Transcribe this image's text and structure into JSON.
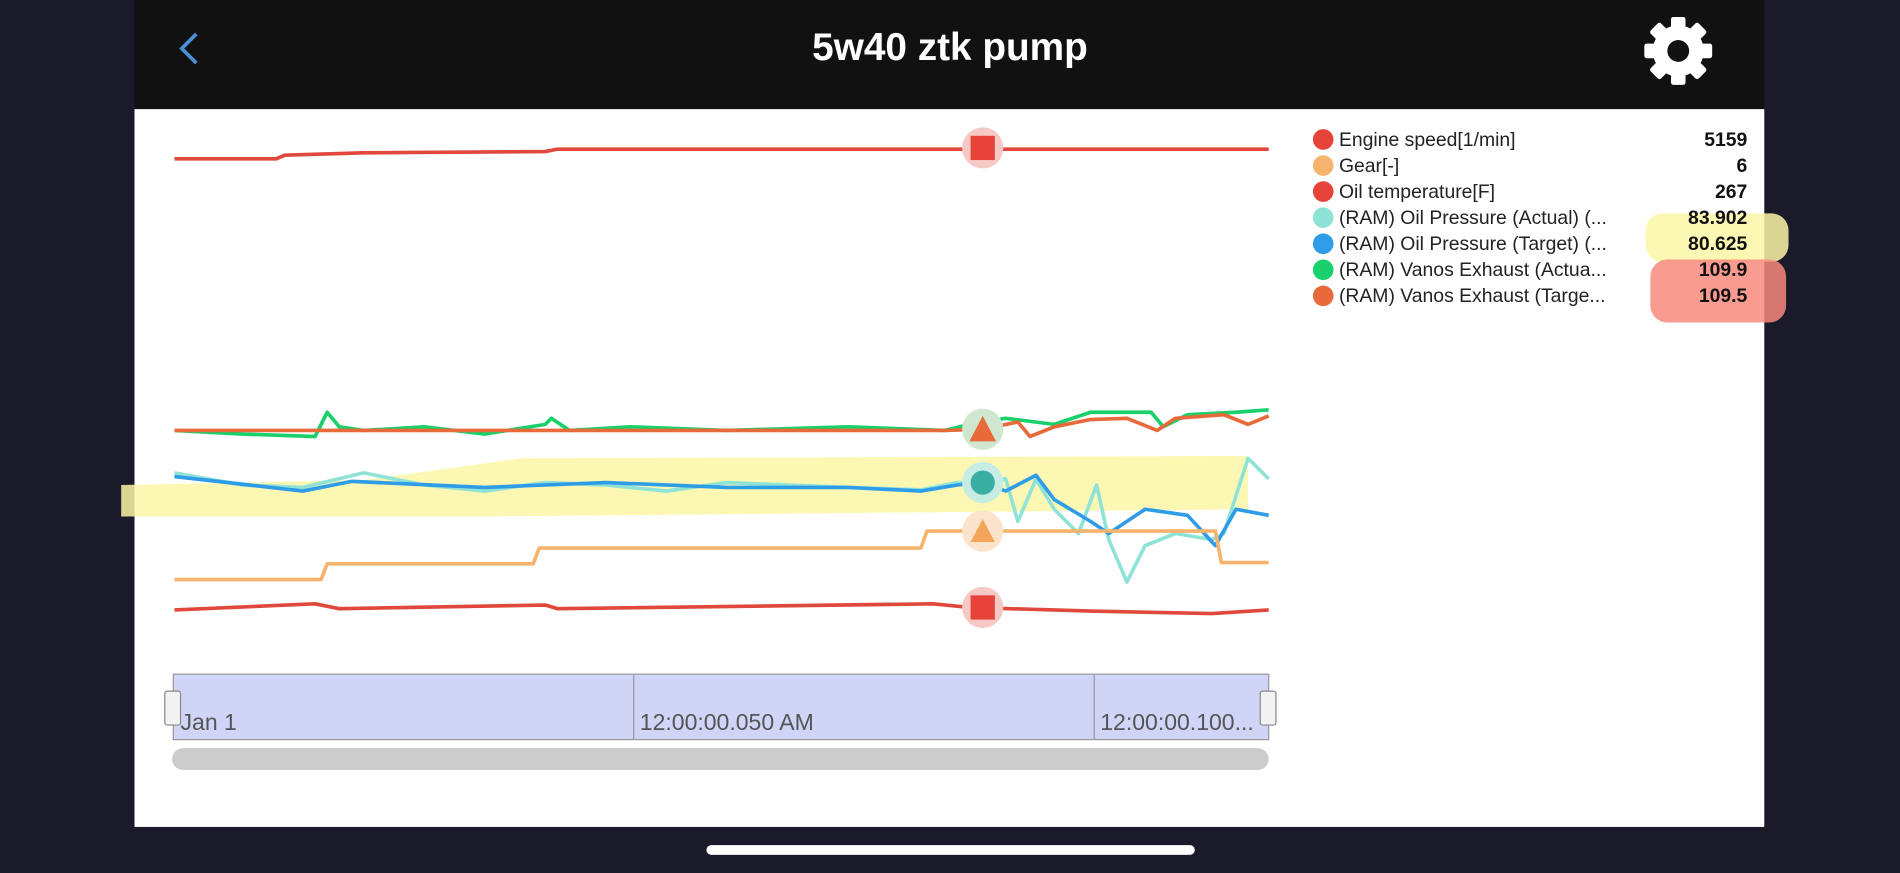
{
  "header": {
    "title": "5w40 ztk pump"
  },
  "legend": {
    "items": [
      {
        "name": "Engine speed[1/min]",
        "value": 5159
      },
      {
        "name": "Gear[-]",
        "value": 6
      },
      {
        "name": "Oil temperature[F]",
        "value": 267
      },
      {
        "name": "(RAM) Oil Pressure (Actual) (...",
        "value": 83.902
      },
      {
        "name": "(RAM) Oil Pressure (Target) (...",
        "value": 80.625
      },
      {
        "name": "(RAM) Vanos Exhaust (Actua...",
        "value": 109.9
      },
      {
        "name": "(RAM) Vanos Exhaust (Targe...",
        "value": 109.5
      }
    ]
  },
  "navigator": {
    "labels": [
      "Jan 1",
      "12:00:00.050 AM",
      "12:00:00.100..."
    ]
  }
}
